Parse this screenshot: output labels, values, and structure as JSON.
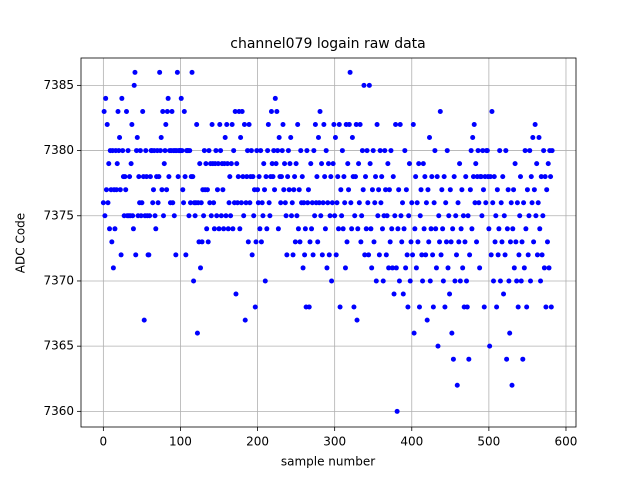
{
  "chart_data": {
    "type": "scatter",
    "title": "channel079 logain raw data",
    "x_label": "sample number",
    "y_label": "ADC Code",
    "color": "#0000ff",
    "grid": true,
    "xlim": [
      -29,
      613
    ],
    "ylim": [
      7358.8,
      7387.1
    ],
    "xticks": [
      0,
      100,
      200,
      300,
      400,
      500,
      600
    ],
    "yticks": [
      7360,
      7365,
      7370,
      7375,
      7380,
      7385
    ],
    "x": [
      0,
      1,
      2,
      3,
      4,
      5,
      6,
      7,
      8,
      9,
      10,
      11,
      12,
      13,
      14,
      15,
      16,
      17,
      18,
      19,
      20,
      21,
      22,
      23,
      24,
      25,
      26,
      27,
      28,
      29,
      30,
      31,
      32,
      33,
      34,
      35,
      36,
      37,
      38,
      39,
      40,
      41,
      42,
      43,
      44,
      45,
      46,
      47,
      48,
      49,
      50,
      51,
      52,
      53,
      54,
      55,
      56,
      57,
      58,
      59,
      60,
      61,
      62,
      63,
      64,
      65,
      66,
      67,
      68,
      69,
      70,
      71,
      72,
      73,
      74,
      75,
      76,
      77,
      78,
      79,
      80,
      81,
      82,
      83,
      84,
      85,
      86,
      87,
      88,
      89,
      90,
      91,
      92,
      93,
      94,
      95,
      96,
      97,
      98,
      99,
      100,
      101,
      102,
      103,
      104,
      105,
      106,
      107,
      108,
      109,
      110,
      111,
      112,
      113,
      114,
      115,
      116,
      117,
      118,
      119,
      120,
      121,
      122,
      123,
      124,
      125,
      126,
      127,
      128,
      129,
      130,
      131,
      132,
      133,
      134,
      135,
      136,
      137,
      138,
      139,
      140,
      141,
      142,
      143,
      144,
      145,
      146,
      147,
      148,
      149,
      150,
      151,
      152,
      153,
      154,
      155,
      156,
      157,
      158,
      159,
      160,
      161,
      162,
      163,
      164,
      165,
      166,
      167,
      168,
      169,
      170,
      171,
      172,
      173,
      174,
      175,
      176,
      177,
      178,
      179,
      180,
      181,
      182,
      183,
      184,
      185,
      186,
      187,
      188,
      189,
      190,
      191,
      192,
      193,
      194,
      195,
      196,
      197,
      198,
      199,
      200,
      201,
      202,
      203,
      204,
      205,
      206,
      207,
      208,
      209,
      210,
      211,
      212,
      213,
      214,
      215,
      216,
      217,
      218,
      219,
      220,
      221,
      222,
      223,
      224,
      225,
      226,
      227,
      228,
      229,
      230,
      231,
      232,
      233,
      234,
      235,
      236,
      237,
      238,
      239,
      240,
      241,
      242,
      243,
      244,
      245,
      246,
      247,
      248,
      249,
      250,
      251,
      252,
      253,
      254,
      255,
      256,
      257,
      258,
      259,
      260,
      261,
      262,
      263,
      264,
      265,
      266,
      267,
      268,
      269,
      270,
      271,
      272,
      273,
      274,
      275,
      276,
      277,
      278,
      279,
      280,
      281,
      282,
      283,
      284,
      285,
      286,
      287,
      288,
      289,
      290,
      291,
      292,
      293,
      294,
      295,
      296,
      297,
      298,
      299,
      300,
      301,
      302,
      303,
      304,
      305,
      306,
      307,
      308,
      309,
      310,
      311,
      312,
      313,
      314,
      315,
      316,
      317,
      318,
      319,
      320,
      321,
      322,
      323,
      324,
      325,
      326,
      327,
      328,
      329,
      330,
      331,
      332,
      333,
      334,
      335,
      336,
      337,
      338,
      339,
      340,
      341,
      342,
      343,
      344,
      345,
      346,
      347,
      348,
      349,
      350,
      351,
      352,
      353,
      354,
      355,
      356,
      357,
      358,
      359,
      360,
      361,
      362,
      363,
      364,
      365,
      366,
      367,
      368,
      369,
      370,
      371,
      372,
      373,
      374,
      375,
      376,
      377,
      378,
      379,
      380,
      381,
      382,
      383,
      384,
      385,
      386,
      387,
      388,
      389,
      390,
      391,
      392,
      393,
      394,
      395,
      396,
      397,
      398,
      399,
      400,
      401,
      402,
      403,
      404,
      405,
      406,
      407,
      408,
      409,
      410,
      411,
      412,
      413,
      414,
      415,
      416,
      417,
      418,
      419,
      420,
      421,
      422,
      423,
      424,
      425,
      426,
      427,
      428,
      429,
      430,
      431,
      432,
      433,
      434,
      435,
      436,
      437,
      438,
      439,
      440,
      441,
      442,
      443,
      444,
      445,
      446,
      447,
      448,
      449,
      450,
      451,
      452,
      453,
      454,
      455,
      456,
      457,
      458,
      459,
      460,
      461,
      462,
      463,
      464,
      465,
      466,
      467,
      468,
      469,
      470,
      471,
      472,
      473,
      474,
      475,
      476,
      477,
      478,
      479,
      480,
      481,
      482,
      483,
      484,
      485,
      486,
      487,
      488,
      489,
      490,
      491,
      492,
      493,
      494,
      495,
      496,
      497,
      498,
      499,
      500,
      501,
      502,
      503,
      504,
      505,
      506,
      507,
      508,
      509,
      510,
      511,
      512,
      513,
      514,
      515,
      516,
      517,
      518,
      519,
      520,
      521,
      522,
      523,
      524,
      525,
      526,
      527,
      528,
      529,
      530,
      531,
      532,
      533,
      534,
      535,
      536,
      537,
      538,
      539,
      540,
      541,
      542,
      543,
      544,
      545,
      546,
      547,
      548,
      549,
      550,
      551,
      552,
      553,
      554,
      555,
      556,
      557,
      558,
      559,
      560,
      561,
      562,
      563,
      564,
      565,
      566,
      567,
      568,
      569,
      570,
      571,
      572,
      573,
      574,
      575,
      576,
      577,
      578,
      579,
      580,
      581,
      582
    ],
    "values": [
      7376,
      7383,
      7375,
      7384,
      7377,
      7382,
      7376,
      7379,
      7374,
      7380,
      7377,
      7373,
      7380,
      7371,
      7377,
      7374,
      7380,
      7377,
      7379,
      7383,
      7380,
      7381,
      7377,
      7372,
      7384,
      7380,
      7378,
      7375,
      7378,
      7377,
      7383,
      7375,
      7380,
      7375,
      7378,
      7375,
      7379,
      7382,
      7375,
      7374,
      7385,
      7386,
      7372,
      7380,
      7381,
      7375,
      7378,
      7376,
      7380,
      7375,
      7376,
      7383,
      7378,
      7367,
      7375,
      7380,
      7378,
      7375,
      7372,
      7372,
      7375,
      7378,
      7380,
      7380,
      7376,
      7377,
      7380,
      7375,
      7374,
      7378,
      7380,
      7376,
      7378,
      7386,
      7380,
      7381,
      7377,
      7383,
      7375,
      7379,
      7380,
      7382,
      7377,
      7383,
      7384,
      7378,
      7380,
      7376,
      7380,
      7383,
      7376,
      7380,
      7375,
      7380,
      7372,
      7380,
      7386,
      7378,
      7380,
      7380,
      7380,
      7384,
      7380,
      7377,
      7376,
      7383,
      7378,
      7372,
      7380,
      7380,
      7380,
      7375,
      7380,
      7376,
      7378,
      7386,
      7378,
      7370,
      7376,
      7375,
      7376,
      7382,
      7366,
      7376,
      7373,
      7379,
      7371,
      7376,
      7373,
      7377,
      7375,
      7380,
      7377,
      7379,
      7374,
      7377,
      7373,
      7380,
      7376,
      7379,
      7375,
      7382,
      7379,
      7376,
      7374,
      7379,
      7380,
      7375,
      7377,
      7379,
      7374,
      7382,
      7380,
      7375,
      7379,
      7377,
      7374,
      7379,
      7381,
      7375,
      7382,
      7379,
      7374,
      7376,
      7378,
      7375,
      7379,
      7382,
      7374,
      7380,
      7376,
      7383,
      7369,
      7379,
      7376,
      7378,
      7383,
      7374,
      7381,
      7376,
      7383,
      7378,
      7375,
      7382,
      7367,
      7376,
      7378,
      7380,
      7373,
      7382,
      7376,
      7378,
      7380,
      7372,
      7378,
      7375,
      7377,
      7368,
      7373,
      7380,
      7377,
      7376,
      7378,
      7374,
      7380,
      7373,
      7376,
      7375,
      7379,
      7377,
      7370,
      7378,
      7374,
      7380,
      7382,
      7376,
      7375,
      7378,
      7383,
      7379,
      7378,
      7380,
      7377,
      7384,
      7379,
      7383,
      7380,
      7374,
      7381,
      7378,
      7376,
      7378,
      7380,
      7382,
      7377,
      7379,
      7376,
      7375,
      7372,
      7378,
      7380,
      7377,
      7379,
      7381,
      7375,
      7376,
      7372,
      7377,
      7378,
      7373,
      7379,
      7375,
      7382,
      7374,
      7377,
      7373,
      7380,
      7376,
      7378,
      7371,
      7376,
      7372,
      7374,
      7368,
      7380,
      7376,
      7377,
      7368,
      7373,
      7379,
      7374,
      7376,
      7372,
      7380,
      7375,
      7382,
      7376,
      7378,
      7373,
      7381,
      7376,
      7383,
      7375,
      7379,
      7372,
      7376,
      7382,
      7378,
      7374,
      7380,
      7371,
      7376,
      7379,
      7372,
      7375,
      7378,
      7370,
      7376,
      7379,
      7382,
      7375,
      7381,
      7372,
      7376,
      7378,
      7374,
      7382,
      7368,
      7377,
      7375,
      7380,
      7374,
      7378,
      7376,
      7371,
      7382,
      7373,
      7379,
      7377,
      7382,
      7386,
      7376,
      7374,
      7381,
      7378,
      7368,
      7375,
      7378,
      7382,
      7367,
      7374,
      7379,
      7376,
      7382,
      7373,
      7375,
      7380,
      7377,
      7385,
      7372,
      7378,
      7374,
      7380,
      7376,
      7372,
      7385,
      7379,
      7374,
      7371,
      7377,
      7380,
      7373,
      7376,
      7378,
      7370,
      7382,
      7375,
      7377,
      7372,
      7380,
      7376,
      7378,
      7374,
      7370,
      7375,
      7380,
      7377,
      7372,
      7375,
      7379,
      7371,
      7377,
      7373,
      7380,
      7374,
      7371,
      7378,
      7369,
      7375,
      7382,
      7371,
      7360,
      7374,
      7377,
      7370,
      7382,
      7375,
      7373,
      7376,
      7369,
      7374,
      7380,
      7371,
      7377,
      7372,
      7368,
      7375,
      7379,
      7370,
      7373,
      7376,
      7372,
      7382,
      7366,
      7374,
      7378,
      7371,
      7376,
      7373,
      7379,
      7368,
      7375,
      7377,
      7372,
      7370,
      7379,
      7374,
      7378,
      7372,
      7376,
      7367,
      7377,
      7373,
      7381,
      7370,
      7374,
      7378,
      7372,
      7368,
      7376,
      7380,
      7374,
      7371,
      7378,
      7365,
      7375,
      7373,
      7383,
      7372,
      7377,
      7374,
      7370,
      7378,
      7368,
      7376,
      7373,
      7380,
      7371,
      7375,
      7369,
      7377,
      7373,
      7366,
      7374,
      7364,
      7378,
      7370,
      7375,
      7372,
      7362,
      7376,
      7373,
      7379,
      7370,
      7374,
      7377,
      7371,
      7375,
      7368,
      7373,
      7378,
      7370,
      7368,
      7375,
      7364,
      7372,
      7377,
      7380,
      7374,
      7381,
      7378,
      7382,
      7376,
      7379,
      7373,
      7378,
      7380,
      7376,
      7371,
      7378,
      7378,
      7375,
      7380,
      7377,
      7368,
      7378,
      7376,
      7380,
      7380,
      7378,
      7374,
      7365,
      7378,
      7372,
      7383,
      7376,
      7370,
      7378,
      7373,
      7375,
      7368,
      7377,
      7372,
      7374,
      7380,
      7370,
      7376,
      7373,
      7378,
      7369,
      7375,
      7372,
      7380,
      7364,
      7374,
      7377,
      7370,
      7366,
      7373,
      7376,
      7362,
      7374,
      7377,
      7371,
      7379,
      7373,
      7370,
      7376,
      7368,
      7372,
      7375,
      7378,
      7370,
      7373,
      7364,
      7376,
      7371,
      7380,
      7374,
      7368,
      7377,
      7372,
      7375,
      7380,
      7370,
      7378,
      7376,
      7381,
      7373,
      7377,
      7382,
      7375,
      7379,
      7372,
      7376,
      7381,
      7374,
      7370,
      7378,
      7372,
      7375,
      7380,
      7371,
      7378,
      7368,
      7377,
      7373,
      7379,
      7371,
      7380,
      7378,
      7368,
      7380
    ]
  }
}
